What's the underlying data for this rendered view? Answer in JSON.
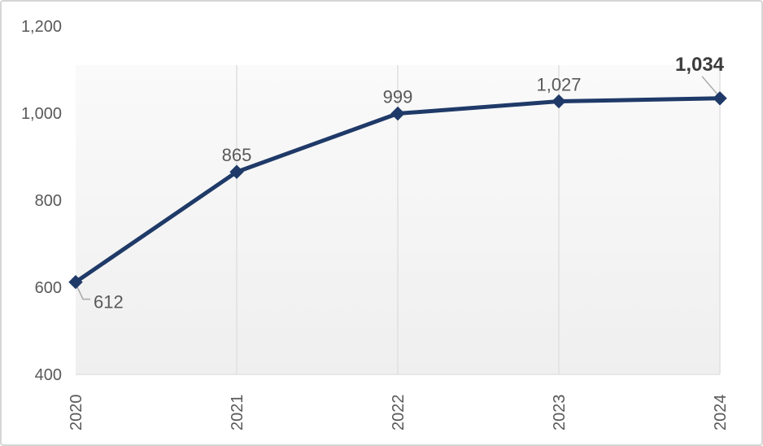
{
  "chart_data": {
    "type": "line",
    "title": "",
    "xlabel": "",
    "ylabel": "",
    "categories": [
      "2020",
      "2021",
      "2022",
      "2023",
      "2024"
    ],
    "values": [
      612,
      865,
      999,
      1027,
      1034
    ],
    "point_labels": [
      "612",
      "865",
      "999",
      "1,027",
      "1,034"
    ],
    "ylim": [
      400,
      1200
    ],
    "yticks": [
      400,
      600,
      800,
      1000,
      1200
    ],
    "ytick_labels": [
      "400",
      "600",
      "800",
      "1,000",
      "1,200"
    ],
    "legend": "none",
    "grid": "vertical-only",
    "marker": "diamond",
    "emphasized_last_point": true,
    "x_labels_rotated_degrees": 90
  },
  "colors": {
    "line": "#1f3a68",
    "marker": "#1f3a68",
    "axis_text": "#595959",
    "point_label_text": "#595959",
    "emphasized_label_text": "#3c3c3c",
    "gridline": "#e0e0e0",
    "plot_fill_top": "#fafafa",
    "plot_fill_bottom": "#efefef",
    "plot_bottom_edge": "#e2e2e2",
    "leader_line": "#a8a8a8",
    "chart_border": "#d6d6d6",
    "background": "#ffffff"
  }
}
